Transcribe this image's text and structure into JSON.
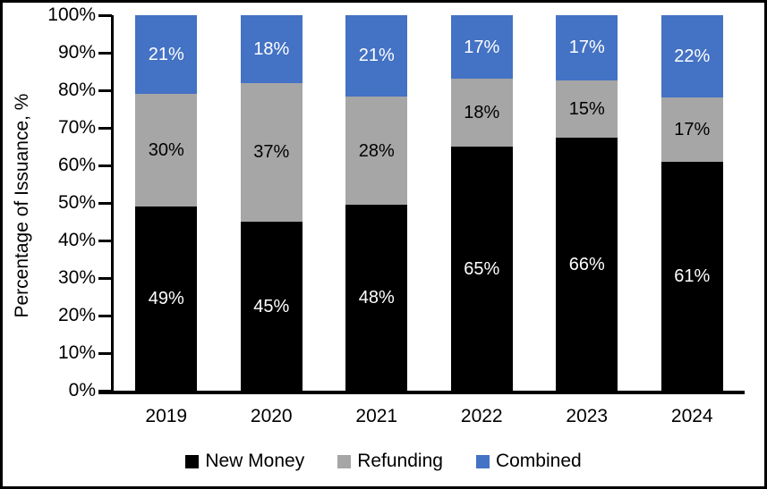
{
  "colors": {
    "background": "#FFFFFF",
    "axis": "#000000",
    "new_money": "#000000",
    "refunding": "#A6A6A6",
    "combined": "#4472C4"
  },
  "chart_data": {
    "type": "bar",
    "stacked": true,
    "stacked_100_percent": true,
    "title": "",
    "xlabel": "",
    "ylabel": "Percentage of Issuance, %",
    "ylim": [
      0,
      100
    ],
    "grid": false,
    "legend_position": "bottom",
    "categories": [
      "2019",
      "2020",
      "2021",
      "2022",
      "2023",
      "2024"
    ],
    "series": [
      {
        "name": "New Money",
        "color": "#000000",
        "label_color": "#FFFFFF",
        "values": [
          49,
          45,
          48,
          65,
          66,
          61
        ]
      },
      {
        "name": "Refunding",
        "color": "#A6A6A6",
        "label_color": "#000000",
        "values": [
          30,
          37,
          28,
          18,
          15,
          17
        ]
      },
      {
        "name": "Combined",
        "color": "#4472C4",
        "label_color": "#FFFFFF",
        "values": [
          21,
          18,
          21,
          17,
          17,
          22
        ]
      }
    ],
    "data_label_suffix": "%",
    "y_ticks": [
      "0%",
      "10%",
      "20%",
      "30%",
      "40%",
      "50%",
      "60%",
      "70%",
      "80%",
      "90%",
      "100%"
    ]
  }
}
